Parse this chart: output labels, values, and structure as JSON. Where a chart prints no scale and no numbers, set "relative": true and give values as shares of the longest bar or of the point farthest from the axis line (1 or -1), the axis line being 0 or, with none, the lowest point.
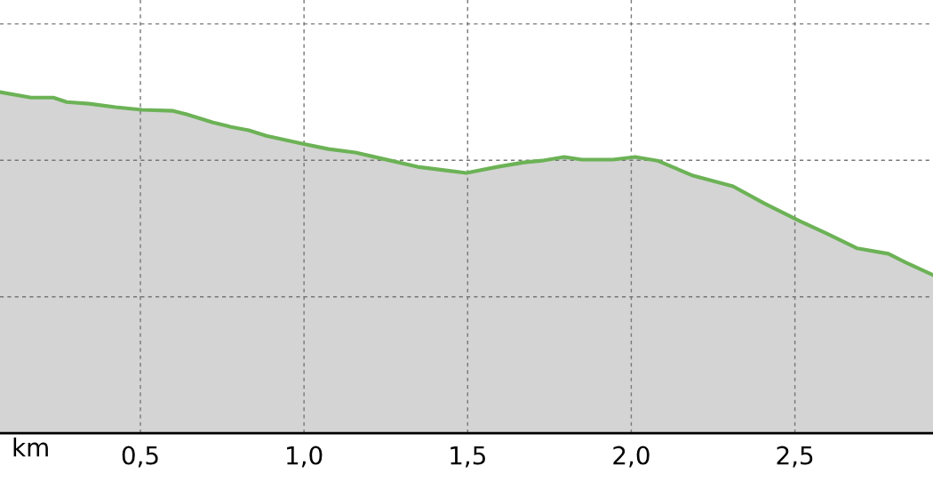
{
  "chart_data": {
    "type": "area",
    "relative": true,
    "xlabel": "km",
    "x": [
      0.071,
      0.166,
      0.234,
      0.275,
      0.343,
      0.424,
      0.505,
      0.6,
      0.641,
      0.722,
      0.777,
      0.831,
      0.885,
      0.994,
      1.075,
      1.157,
      1.238,
      1.347,
      1.428,
      1.496,
      1.591,
      1.672,
      1.727,
      1.795,
      1.849,
      1.944,
      2.012,
      2.08,
      2.189,
      2.311,
      2.406,
      2.515,
      2.596,
      2.691,
      2.786,
      2.84,
      2.922
    ],
    "series": [
      {
        "color": "#6cb256",
        "values": [
          1.0,
          0.984,
          0.984,
          0.971,
          0.966,
          0.956,
          0.948,
          0.945,
          0.935,
          0.911,
          0.898,
          0.888,
          0.872,
          0.849,
          0.833,
          0.823,
          0.805,
          0.781,
          0.771,
          0.763,
          0.781,
          0.794,
          0.799,
          0.81,
          0.802,
          0.802,
          0.81,
          0.799,
          0.755,
          0.724,
          0.674,
          0.622,
          0.586,
          0.542,
          0.526,
          0.5,
          0.464
        ]
      }
    ],
    "xlim": [
      0.071,
      2.922
    ],
    "xticks": [
      {
        "value": 0.5,
        "label": "0,5"
      },
      {
        "value": 1.0,
        "label": "1,0"
      },
      {
        "value": 1.5,
        "label": "1,5"
      },
      {
        "value": 2.0,
        "label": "2,0"
      },
      {
        "value": 2.5,
        "label": "2,5"
      }
    ],
    "grid": true,
    "legend": false
  }
}
